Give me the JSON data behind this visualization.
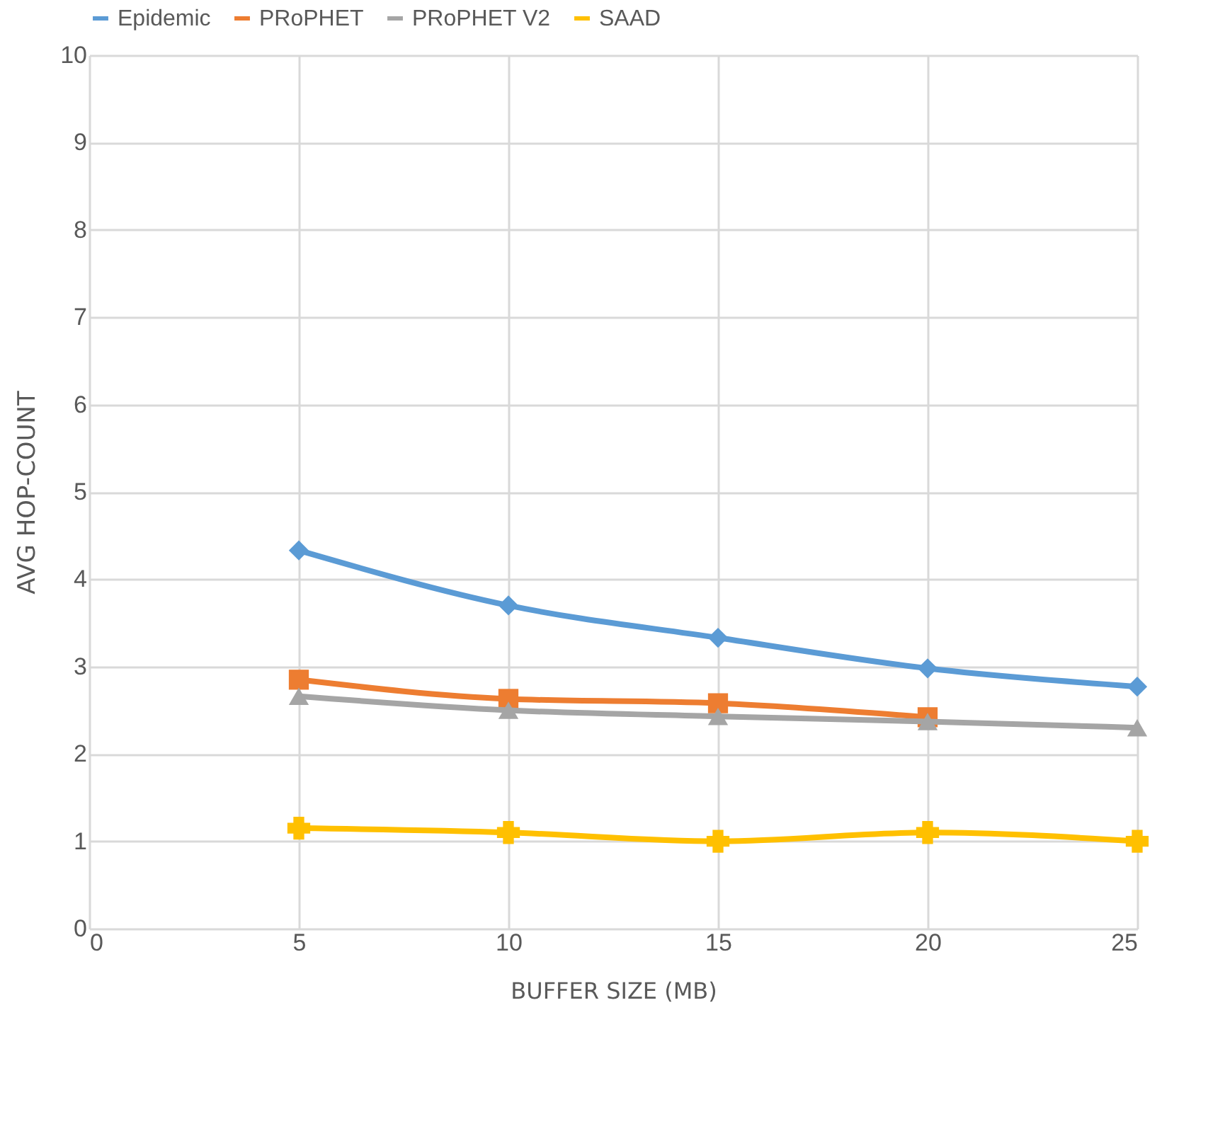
{
  "chart_data": {
    "type": "line",
    "xlabel": "BUFFER SIZE (MB)",
    "ylabel": "AVG HOP-COUNT",
    "x": [
      5,
      10,
      15,
      20,
      25
    ],
    "series": [
      {
        "name": "Epidemic",
        "color": "#5b9bd5",
        "marker": "diamond",
        "values": [
          4.33,
          3.7,
          3.33,
          2.98,
          2.77
        ]
      },
      {
        "name": "PRoPHET",
        "color": "#ed7d31",
        "marker": "square",
        "values": [
          2.85,
          2.63,
          2.58,
          2.42,
          null
        ]
      },
      {
        "name": "PRoPHET V2",
        "color": "#a5a5a5",
        "marker": "triangle",
        "values": [
          2.66,
          2.5,
          2.43,
          2.37,
          2.3
        ]
      },
      {
        "name": "SAAD",
        "color": "#ffc000",
        "marker": "cross",
        "values": [
          1.15,
          1.1,
          1.0,
          1.1,
          1.0
        ]
      }
    ],
    "xlim": [
      0,
      25
    ],
    "xticks": [
      0,
      5,
      10,
      15,
      20,
      25
    ],
    "ylim": [
      0,
      10
    ],
    "yticks": [
      0,
      1,
      2,
      3,
      4,
      5,
      6,
      7,
      8,
      9,
      10
    ],
    "grid": true,
    "legend": "top"
  }
}
